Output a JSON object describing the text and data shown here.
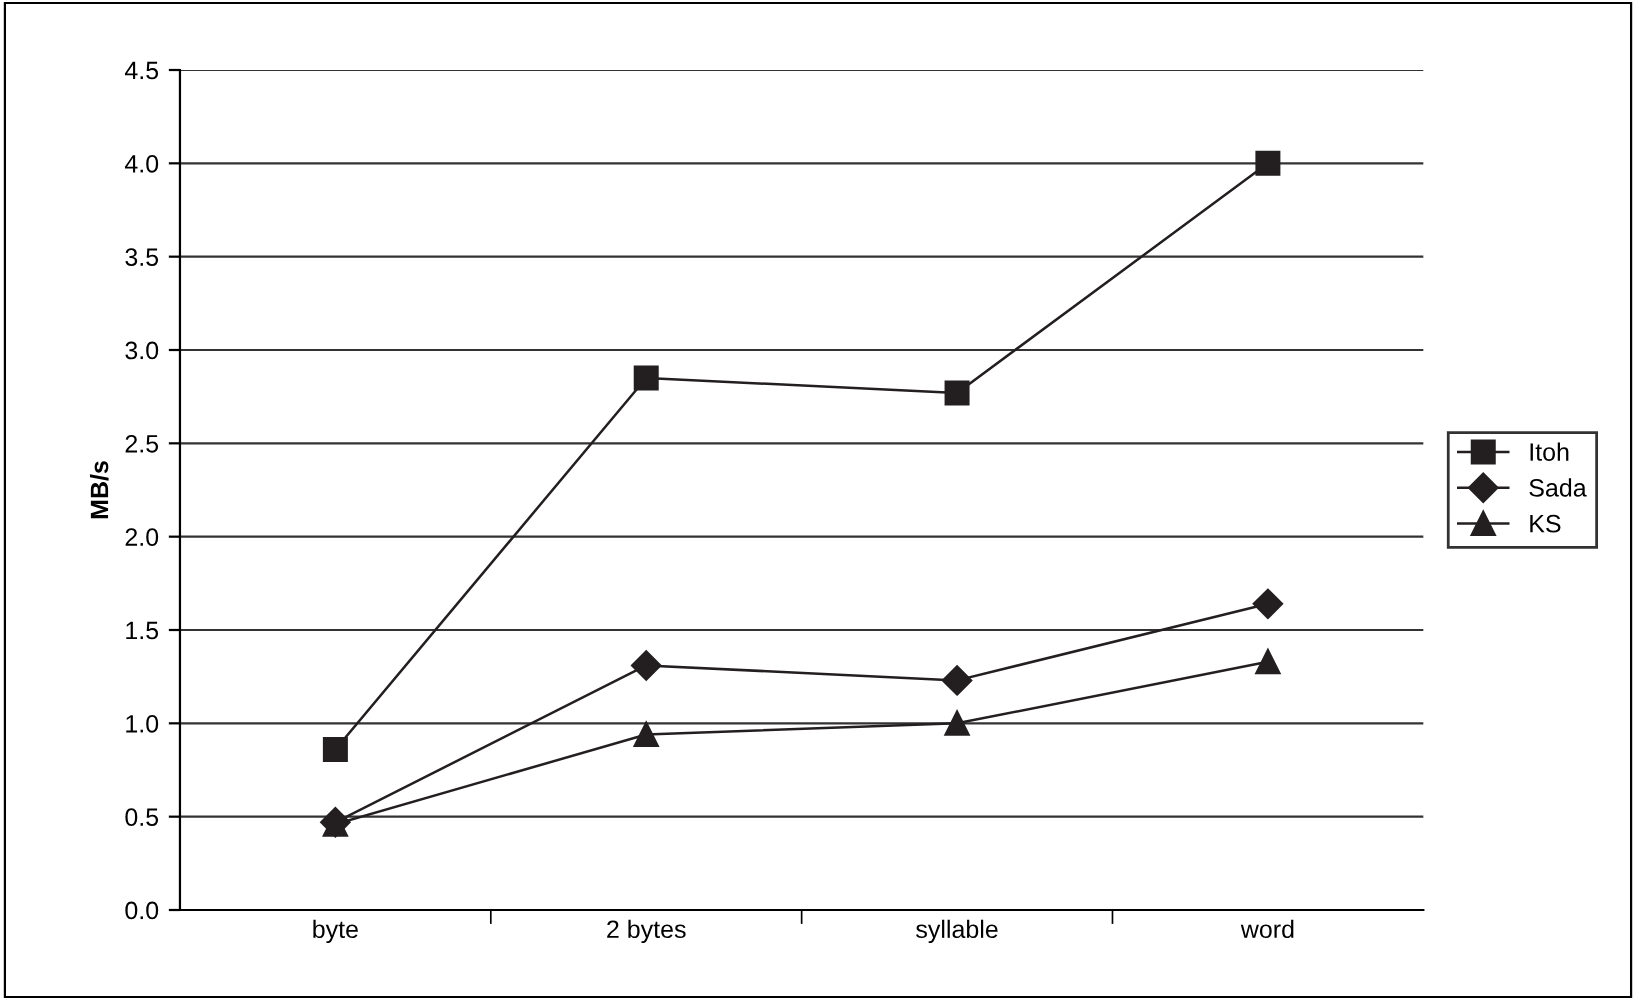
{
  "chart_data": {
    "type": "line",
    "ylabel": "MB/s",
    "categories": [
      "byte",
      "2 bytes",
      "syllable",
      "word"
    ],
    "series": [
      {
        "name": "Itoh",
        "color": "#231f20",
        "marker": "square",
        "values": [
          0.86,
          2.85,
          2.77,
          4.0
        ]
      },
      {
        "name": "Sada",
        "color": "#231f20",
        "marker": "diamond",
        "values": [
          0.47,
          1.31,
          1.23,
          1.64
        ]
      },
      {
        "name": "KS",
        "color": "#231f20",
        "marker": "triangle",
        "values": [
          0.46,
          0.94,
          1.0,
          1.33
        ]
      }
    ],
    "ylim": [
      0,
      4.5
    ],
    "yticks": [
      {
        "value": 0,
        "label": "0.0"
      },
      0.5,
      {
        "value": 1,
        "label": "1.0"
      },
      1.5,
      {
        "value": 2,
        "label": "2.0"
      },
      2.5,
      {
        "value": 3,
        "label": "3.0"
      },
      3.5,
      {
        "value": 4,
        "label": "4.0"
      },
      4.5
    ],
    "grid": "y",
    "legend": "right",
    "line_style": "solid"
  }
}
